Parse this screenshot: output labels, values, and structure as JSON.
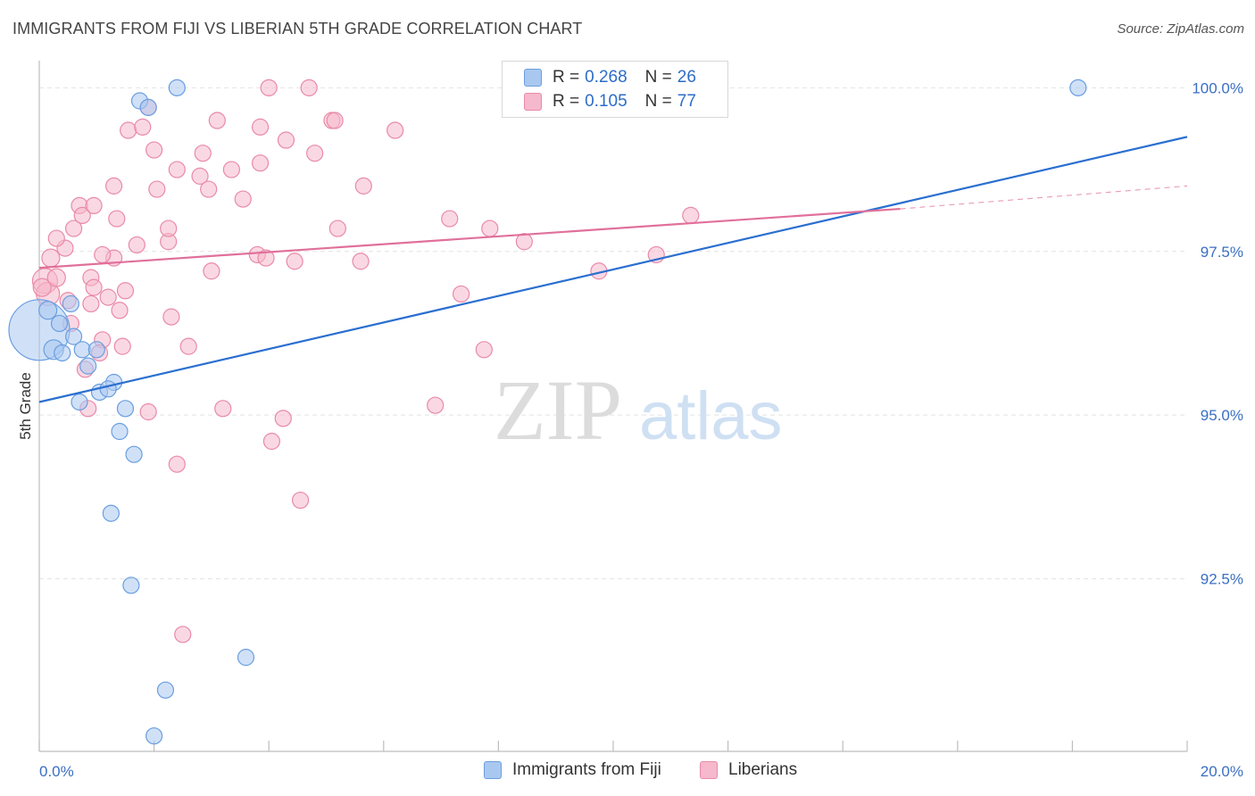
{
  "title": "IMMIGRANTS FROM FIJI VS LIBERIAN 5TH GRADE CORRELATION CHART",
  "source": "Source: ZipAtlas.com",
  "watermark": {
    "zip": "ZIP",
    "atlas": "atlas"
  },
  "legend": {
    "r_label": "R =",
    "n_label": "N =",
    "rows": [
      {
        "r": "0.268",
        "n": "26",
        "fill": "#a9c8f0",
        "stroke": "#6a9ee0"
      },
      {
        "r": "0.105",
        "n": "77",
        "fill": "#f6b8cc",
        "stroke": "#e98aa8"
      }
    ]
  },
  "bottom_legend": [
    "Immigrants from Fiji",
    "Liberians"
  ],
  "chart_data": {
    "type": "scatter",
    "title": "IMMIGRANTS FROM FIJI VS LIBERIAN 5TH GRADE CORRELATION CHART",
    "xlabel": "",
    "ylabel": "5th Grade",
    "xlim": [
      0.0,
      20.0
    ],
    "ylim": [
      90.0,
      100.25
    ],
    "x_tick_labels": [
      "0.0%",
      "20.0%"
    ],
    "y_ticks": [
      92.5,
      95.0,
      97.5,
      100.0
    ],
    "y_tick_labels": [
      "92.5%",
      "95.0%",
      "97.5%",
      "100.0%"
    ],
    "series": [
      {
        "name": "Immigrants from Fiji",
        "color": "#a9c8f0",
        "stroke": "#6a9ee0",
        "line_color": "#2a6fd0",
        "trend": {
          "x0": 0.0,
          "y0": 95.2,
          "x1": 20.0,
          "y1": 99.25
        },
        "points": [
          [
            0.0,
            96.3,
            34
          ],
          [
            0.15,
            96.6,
            10
          ],
          [
            0.35,
            96.4,
            9
          ],
          [
            0.55,
            96.7,
            9
          ],
          [
            0.25,
            96.0,
            11
          ],
          [
            0.6,
            96.2,
            9
          ],
          [
            0.4,
            95.95,
            9
          ],
          [
            0.75,
            96.0,
            9
          ],
          [
            1.0,
            96.0,
            9
          ],
          [
            0.85,
            95.75,
            9
          ],
          [
            1.3,
            95.5,
            9
          ],
          [
            1.05,
            95.35,
            9
          ],
          [
            1.2,
            95.4,
            9
          ],
          [
            0.7,
            95.2,
            9
          ],
          [
            1.5,
            95.1,
            9
          ],
          [
            1.4,
            94.75,
            9
          ],
          [
            1.65,
            94.4,
            9
          ],
          [
            1.25,
            93.5,
            9
          ],
          [
            1.6,
            92.4,
            9
          ],
          [
            2.2,
            90.8,
            9
          ],
          [
            3.6,
            91.3,
            9
          ],
          [
            2.0,
            90.1,
            9
          ],
          [
            1.75,
            99.8,
            9
          ],
          [
            1.9,
            99.7,
            9
          ],
          [
            2.4,
            100.0,
            9
          ],
          [
            18.1,
            100.0,
            9
          ]
        ]
      },
      {
        "name": "Liberians",
        "color": "#f6b8cc",
        "stroke": "#e98aa8",
        "line_color": "#e0709a",
        "trend": {
          "x0": 0.0,
          "y0": 97.25,
          "x1": 15.0,
          "y1": 98.15
        },
        "trend_dashed": {
          "x0": 15.0,
          "y0": 98.15,
          "x1": 20.0,
          "y1": 98.5
        },
        "points": [
          [
            0.1,
            97.05,
            14
          ],
          [
            0.15,
            96.85,
            13
          ],
          [
            0.05,
            96.95,
            10
          ],
          [
            0.3,
            97.1,
            10
          ],
          [
            0.2,
            97.4,
            10
          ],
          [
            0.45,
            97.55,
            9
          ],
          [
            0.3,
            97.7,
            9
          ],
          [
            0.6,
            97.85,
            9
          ],
          [
            0.7,
            98.2,
            9
          ],
          [
            0.75,
            98.05,
            9
          ],
          [
            0.95,
            98.2,
            9
          ],
          [
            0.9,
            97.1,
            9
          ],
          [
            0.5,
            96.75,
            9
          ],
          [
            0.55,
            96.4,
            9
          ],
          [
            0.9,
            96.7,
            9
          ],
          [
            1.2,
            96.8,
            9
          ],
          [
            1.1,
            96.15,
            9
          ],
          [
            1.05,
            95.95,
            9
          ],
          [
            0.8,
            95.7,
            9
          ],
          [
            0.85,
            95.1,
            9
          ],
          [
            1.3,
            97.4,
            9
          ],
          [
            1.1,
            97.45,
            9
          ],
          [
            1.4,
            96.6,
            9
          ],
          [
            1.5,
            96.9,
            9
          ],
          [
            1.45,
            96.05,
            9
          ],
          [
            1.7,
            97.6,
            9
          ],
          [
            1.35,
            98.0,
            9
          ],
          [
            1.3,
            98.5,
            9
          ],
          [
            1.55,
            99.35,
            9
          ],
          [
            1.8,
            99.4,
            9
          ],
          [
            2.0,
            99.05,
            9
          ],
          [
            2.05,
            98.45,
            9
          ],
          [
            2.25,
            97.65,
            9
          ],
          [
            2.25,
            97.85,
            9
          ],
          [
            2.3,
            96.5,
            9
          ],
          [
            2.4,
            98.75,
            9
          ],
          [
            2.6,
            96.05,
            9
          ],
          [
            2.8,
            98.65,
            9
          ],
          [
            2.85,
            99.0,
            9
          ],
          [
            2.95,
            98.45,
            9
          ],
          [
            3.0,
            97.2,
            9
          ],
          [
            3.1,
            99.5,
            9
          ],
          [
            3.35,
            98.75,
            9
          ],
          [
            3.55,
            98.3,
            9
          ],
          [
            3.8,
            97.45,
            9
          ],
          [
            3.85,
            99.4,
            9
          ],
          [
            3.85,
            98.85,
            9
          ],
          [
            3.95,
            97.4,
            9
          ],
          [
            4.0,
            100.0,
            9
          ],
          [
            4.3,
            99.2,
            9
          ],
          [
            4.45,
            97.35,
            9
          ],
          [
            4.7,
            100.0,
            9
          ],
          [
            4.8,
            99.0,
            9
          ],
          [
            5.1,
            99.5,
            9
          ],
          [
            5.15,
            99.5,
            9
          ],
          [
            5.2,
            97.85,
            9
          ],
          [
            5.6,
            97.35,
            9
          ],
          [
            5.65,
            98.5,
            9
          ],
          [
            6.2,
            99.35,
            9
          ],
          [
            7.15,
            98.0,
            9
          ],
          [
            7.35,
            96.85,
            9
          ],
          [
            7.85,
            97.85,
            9
          ],
          [
            7.75,
            96.0,
            9
          ],
          [
            8.45,
            97.65,
            9
          ],
          [
            9.75,
            97.2,
            9
          ],
          [
            10.75,
            97.45,
            9
          ],
          [
            11.35,
            98.05,
            9
          ],
          [
            1.9,
            95.05,
            9
          ],
          [
            2.4,
            94.25,
            9
          ],
          [
            3.2,
            95.1,
            9
          ],
          [
            4.05,
            94.6,
            9
          ],
          [
            4.25,
            94.95,
            9
          ],
          [
            4.55,
            93.7,
            9
          ],
          [
            6.9,
            95.15,
            9
          ],
          [
            2.5,
            91.65,
            9
          ],
          [
            1.9,
            99.7,
            9
          ],
          [
            0.95,
            96.95,
            9
          ]
        ]
      }
    ]
  }
}
